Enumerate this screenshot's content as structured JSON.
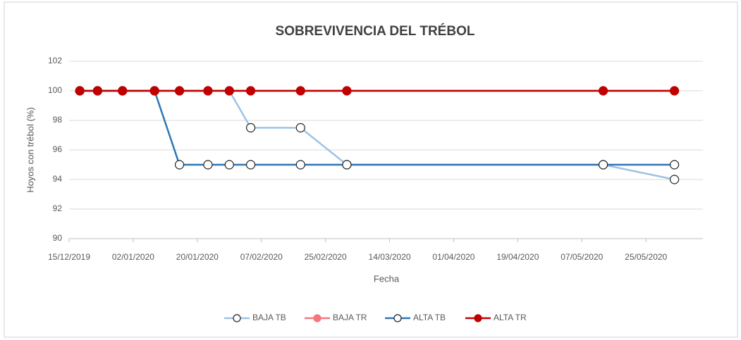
{
  "chart_data": {
    "type": "line",
    "title": "SOBREVIVENCIA DEL TRÉBOL",
    "x_label": "Fecha",
    "y_label": "Hoyos con trébol (%)",
    "x": [
      "2019-12-18",
      "2019-12-23",
      "2019-12-30",
      "2020-01-08",
      "2020-01-15",
      "2020-01-23",
      "2020-01-29",
      "2020-02-04",
      "2020-02-18",
      "2020-03-02",
      "2020-05-13",
      "2020-06-02"
    ],
    "series": [
      {
        "name": "BAJA TB",
        "color": "#9dc3e6",
        "marker": "open",
        "values": [
          100,
          100,
          100,
          100,
          100,
          100,
          100,
          97.5,
          97.5,
          95,
          95,
          94
        ]
      },
      {
        "name": "BAJA TR",
        "color": "#f4787b",
        "marker": "filled",
        "values": [
          100,
          100,
          100,
          100,
          100,
          100,
          100,
          100,
          100,
          100,
          100,
          100
        ]
      },
      {
        "name": "ALTA TB",
        "color": "#2e75b6",
        "marker": "open",
        "values": [
          100,
          100,
          100,
          100,
          95,
          95,
          95,
          95,
          95,
          95,
          95,
          95
        ]
      },
      {
        "name": "ALTA TR",
        "color": "#c00000",
        "marker": "filled",
        "values": [
          100,
          100,
          100,
          100,
          100,
          100,
          100,
          100,
          100,
          100,
          100,
          100
        ]
      }
    ],
    "xlim": [
      "2019-12-15",
      "2020-06-10"
    ],
    "xticks": [
      {
        "value": "2019-12-15",
        "label": "15/12/2019"
      },
      {
        "value": "2020-01-02",
        "label": "02/01/2020"
      },
      {
        "value": "2020-01-20",
        "label": "20/01/2020"
      },
      {
        "value": "2020-02-07",
        "label": "07/02/2020"
      },
      {
        "value": "2020-02-25",
        "label": "25/02/2020"
      },
      {
        "value": "2020-03-14",
        "label": "14/03/2020"
      },
      {
        "value": "2020-04-01",
        "label": "01/04/2020"
      },
      {
        "value": "2020-04-19",
        "label": "19/04/2020"
      },
      {
        "value": "2020-05-07",
        "label": "07/05/2020"
      },
      {
        "value": "2020-05-25",
        "label": "25/05/2020"
      }
    ],
    "ylim": [
      90,
      102
    ],
    "yticks": [
      90,
      92,
      94,
      96,
      98,
      100,
      102
    ],
    "grid": true,
    "legend": "bottom"
  }
}
